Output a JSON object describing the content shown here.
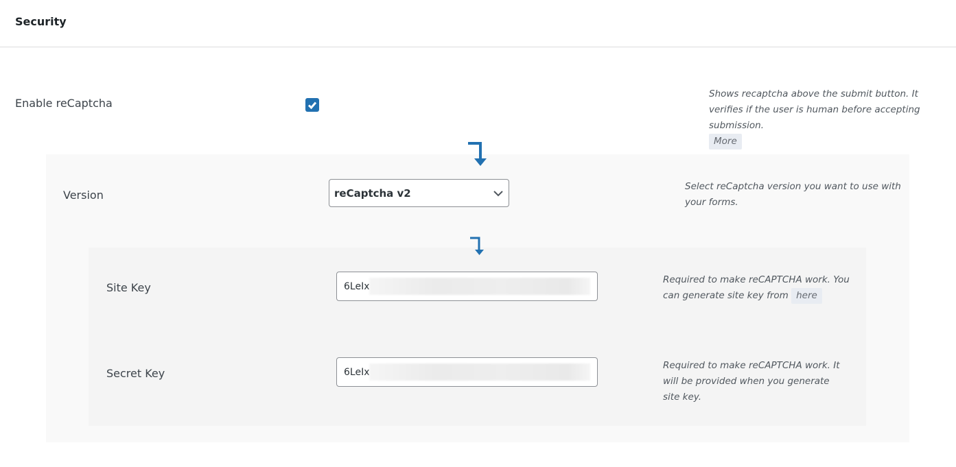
{
  "header": {
    "title": "Security"
  },
  "enable_recaptcha": {
    "label": "Enable reCaptcha",
    "checked": true,
    "description": "Shows recaptcha above the submit button. It verifies if the user is human before accepting submission.",
    "more_label": "More"
  },
  "version": {
    "label": "Version",
    "selected": "reCaptcha v2",
    "description": "Select reCaptcha version you want to use with your forms."
  },
  "site_key": {
    "label": "Site Key",
    "value": "6LeIx",
    "description": "Required to make reCAPTCHA work. You can generate site key from",
    "link_label": "here"
  },
  "secret_key": {
    "label": "Secret Key",
    "value": "6LeIx",
    "description": "Required to make reCAPTCHA work. It will be provided when you generate site key."
  },
  "colors": {
    "accent": "#2271b1"
  }
}
